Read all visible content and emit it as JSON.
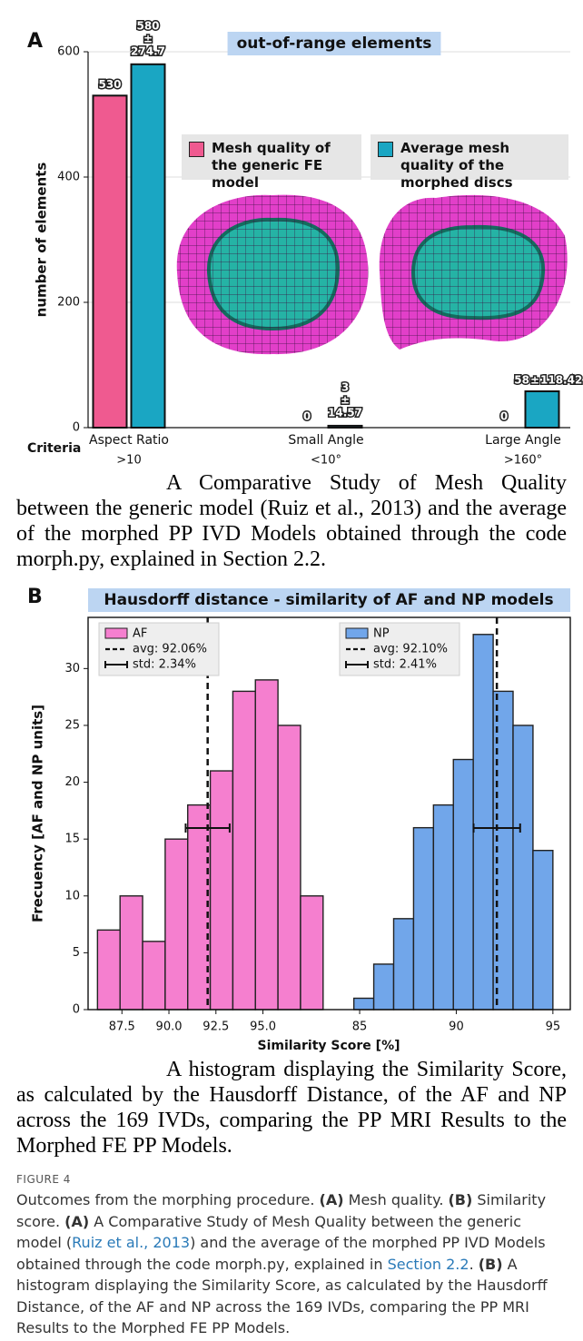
{
  "chart_data": [
    {
      "type": "bar",
      "panel": "A",
      "title": "out-of-range elements",
      "ylabel": "number of elements",
      "xlabel": "Criteria",
      "categories": [
        "Aspect Ratio",
        "Small Angle",
        "Large Angle"
      ],
      "category_details": [
        ">10",
        "<10°",
        ">160°"
      ],
      "series": [
        {
          "name": "Mesh quality of the generic FE model",
          "color": "#ef5a90",
          "values": [
            530,
            0,
            0
          ]
        },
        {
          "name": "Average mesh quality of the morphed discs",
          "color": "#1aa6c3",
          "values": [
            580,
            3,
            58
          ],
          "errors": [
            274.7,
            14.57,
            118.42
          ]
        }
      ],
      "error_sign": "±",
      "ylim": [
        0,
        600
      ],
      "yticks": [
        0,
        200,
        400,
        600
      ],
      "grid": true,
      "caption": "A Comparative Study of Mesh Quality between the generic model (Ruiz et al., 2013) and the average of the morphed PP IVD Models obtained through the code morph.py, explained in Section 2.2."
    },
    {
      "type": "histogram",
      "panel": "B",
      "title": "Hausdorff distance - similarity of AF and NP models",
      "ylabel": "Frecuency [AF and NP units]",
      "xlabel": "Similarity Score [%]",
      "ylim": [
        0,
        34.5
      ],
      "yticks": [
        0,
        5,
        10,
        15,
        20,
        25,
        30
      ],
      "series": [
        {
          "name": "AF",
          "color": "#f57fcf",
          "bins": [
            86.2,
            87.4,
            88.6,
            89.8,
            91.0,
            92.2,
            93.4,
            94.6,
            95.8,
            97.0,
            98.2
          ],
          "values": [
            7,
            10,
            6,
            15,
            18,
            21,
            28,
            29,
            25,
            10
          ],
          "mean": 92.06,
          "mean_label": "avg: 92.06%",
          "std": 2.34,
          "std_label": "std: 2.34%",
          "xlim": [
            85.7,
            98.5
          ],
          "xticks": [
            87.5,
            {
              "value": 90,
              "label": "90.0"
            },
            92.5,
            {
              "value": 95,
              "label": "95.0"
            }
          ]
        },
        {
          "name": "NP",
          "color": "#71a6ea",
          "bins": [
            84.7,
            85.73,
            86.76,
            87.79,
            88.82,
            89.85,
            90.88,
            91.91,
            92.94,
            93.97,
            95.0
          ],
          "values": [
            1,
            4,
            8,
            16,
            18,
            22,
            33,
            28,
            25,
            14
          ],
          "mean": 92.1,
          "mean_label": "avg: 92.10%",
          "std": 2.41,
          "std_label": "std: 2.41%",
          "xlim": [
            83.4,
            95.9
          ],
          "xticks": [
            85,
            90,
            95
          ]
        }
      ],
      "caption": "A histogram displaying the Similarity Score, as calculated by the Hausdorff Distance, of the AF and NP across the 169 IVDs, comparing the PP MRI Results to the Morphed FE PP Models."
    }
  ],
  "figure": {
    "label": "FIGURE 4",
    "caption": [
      {
        "text": "Outcomes from the morphing procedure. "
      },
      {
        "text": "(A)",
        "style": "bold"
      },
      {
        "text": " Mesh quality. "
      },
      {
        "text": "(B)",
        "style": "bold"
      },
      {
        "text": " Similarity score. "
      },
      {
        "text": "(A)",
        "style": "bold"
      },
      {
        "text": " A Comparative Study of Mesh Quality between the generic model ("
      },
      {
        "text": "Ruiz et al., 2013",
        "style": "link"
      },
      {
        "text": ") and the average of the morphed PP IVD Models obtained through the code morph.py, explained in "
      },
      {
        "text": "Section 2.2",
        "style": "link"
      },
      {
        "text": ". "
      },
      {
        "text": "(B)",
        "style": "bold"
      },
      {
        "text": " A histogram displaying the Similarity Score, as calculated by the Hausdorff Distance, of the AF and NP across the 169 IVDs, comparing the PP MRI Results to the Morphed FE PP Models."
      }
    ]
  }
}
